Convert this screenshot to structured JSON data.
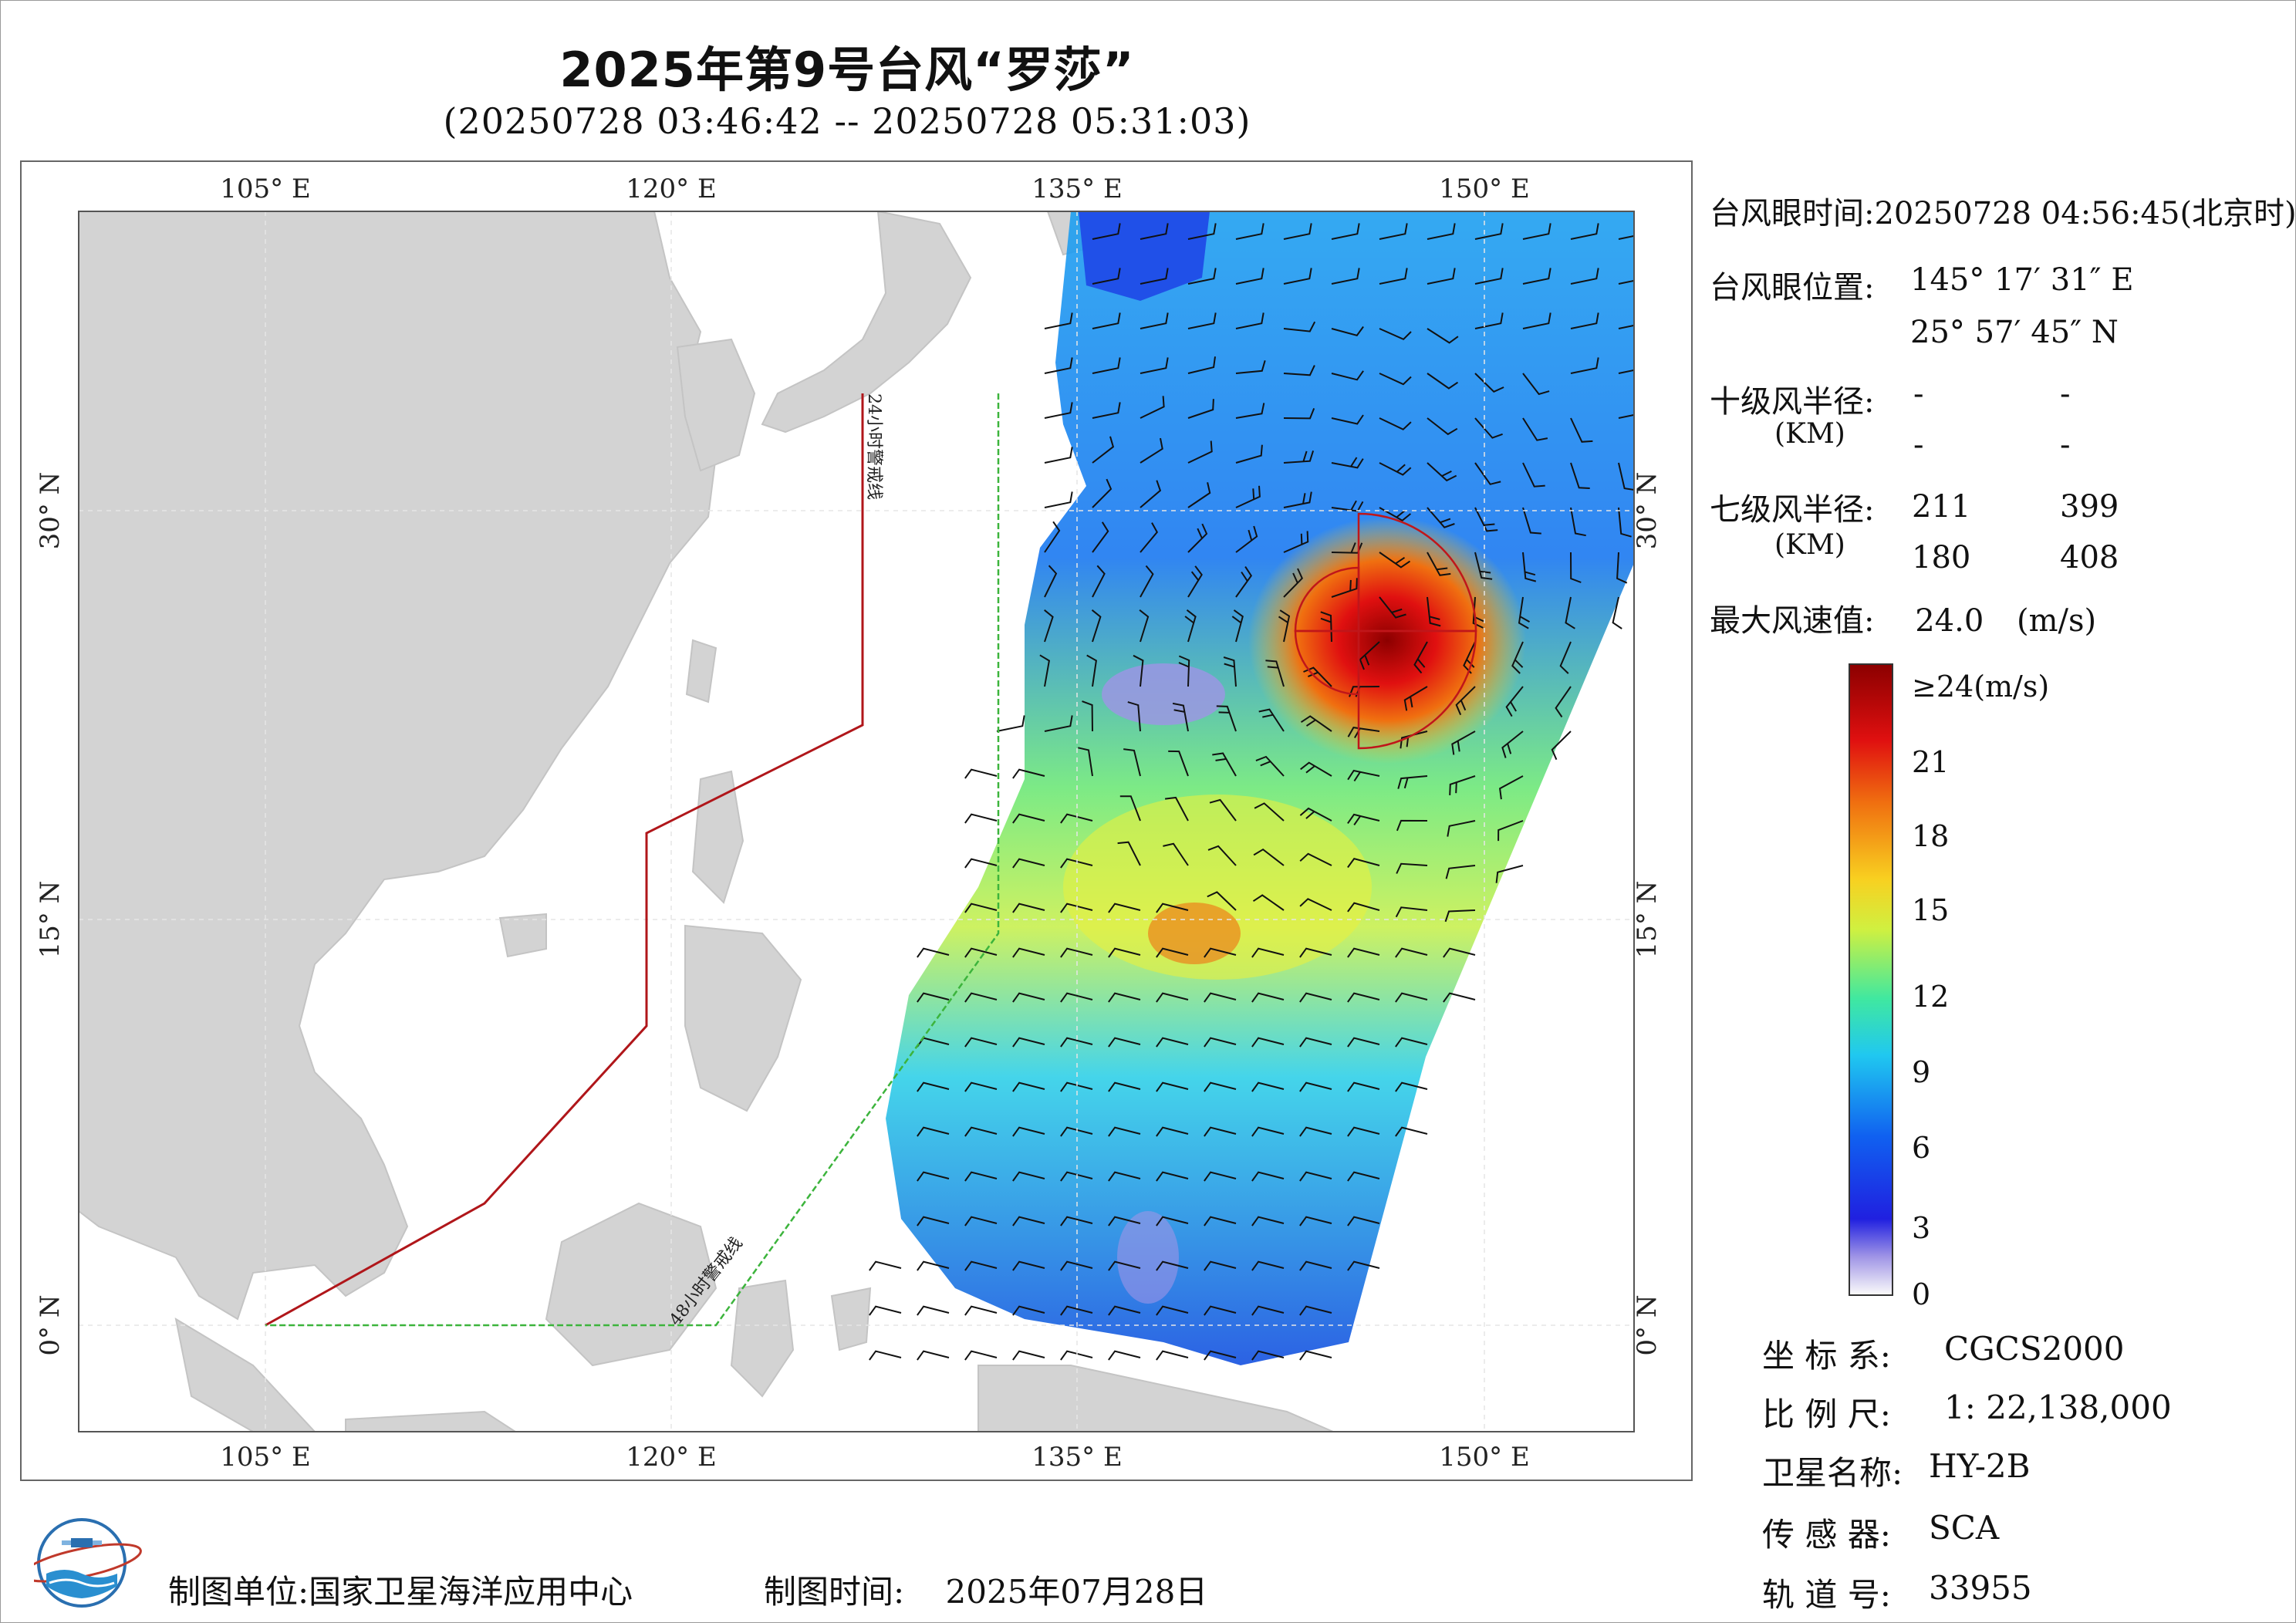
{
  "header": {
    "title": "2025年第9号台风“罗莎”",
    "time_range": "(20250728 03:46:42 -- 20250728 05:31:03)"
  },
  "map": {
    "lon_labels": [
      "105° E",
      "120° E",
      "135° E",
      "150° E"
    ],
    "lat_labels": [
      "30° N",
      "15° N",
      "0° N"
    ],
    "warning_24h": "24小时警戒线",
    "warning_48h": "48小时警戒线",
    "colors": {
      "land": "#d3d3d3",
      "sea": "#ffffff",
      "warning_24h": "#b0161a",
      "warning_48h": "#3cb43c",
      "radius_circle": "#c0161a"
    }
  },
  "info": {
    "eye_time_label": "台风眼时间:",
    "eye_time_value": "20250728 04:56:45(北京时)",
    "eye_pos_label": "台风眼位置:",
    "eye_lon": "145° 17′ 31″ E",
    "eye_lat": "25° 57′ 45″ N",
    "r10_label": "十级风半径:",
    "r10_unit": "(KM)",
    "r10_values": [
      "-",
      "-",
      "-",
      "-"
    ],
    "r7_label": "七级风半径:",
    "r7_unit": "(KM)",
    "r7_values": [
      "211",
      "399",
      "180",
      "408"
    ],
    "max_wind_label": "最大风速值:",
    "max_wind_value": "24.0",
    "max_wind_unit": "(m/s)"
  },
  "colorbar": {
    "top_label": "≥24(m/s)",
    "ticks": [
      "21",
      "18",
      "15",
      "12",
      "9",
      "6",
      "3",
      "0"
    ],
    "colors": [
      "#fafafa",
      "#9f94e6",
      "#2020e0",
      "#1060f0",
      "#20c8f0",
      "#40e8a0",
      "#d0f040",
      "#f8d020",
      "#f07010",
      "#e01010",
      "#8c0000"
    ]
  },
  "meta": {
    "crs_label": "坐 标 系:",
    "crs_value": "CGCS2000",
    "scale_label": "比 例 尺:",
    "scale_value": "1: 22,138,000",
    "satellite_label": "卫星名称:",
    "satellite_value": "HY-2B",
    "sensor_label": "传 感 器:",
    "sensor_value": "SCA",
    "orbit_label": "轨 道 号:",
    "orbit_value": "33955"
  },
  "footer": {
    "unit_label": "制图单位:",
    "unit_value": "国家卫星海洋应用中心",
    "time_label": "制图时间:",
    "time_value": "2025年07月28日"
  }
}
